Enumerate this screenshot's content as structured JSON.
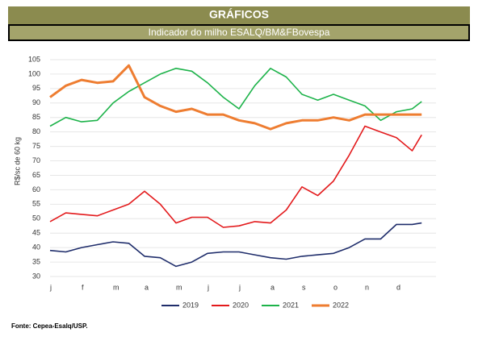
{
  "header": {
    "title": "GRÁFICOS",
    "subtitle": "Indicador do milho ESALQ/BM&FBovespa"
  },
  "source": "Fonte: Cepea-Esalq/USP.",
  "chart_data": {
    "type": "line",
    "y_label": "R$/sc de 60 kg",
    "x": [
      0,
      0.5,
      1,
      1.5,
      2,
      2.5,
      3,
      3.5,
      4,
      4.5,
      5,
      5.5,
      6,
      6.5,
      7,
      7.5,
      8,
      8.5,
      9,
      9.5,
      10,
      10.5,
      11,
      11.5,
      11.8
    ],
    "xlim": [
      0,
      12
    ],
    "xticks": [
      {
        "value": 0,
        "label": "j"
      },
      {
        "value": 1,
        "label": "f"
      },
      {
        "value": 2,
        "label": "m"
      },
      {
        "value": 3,
        "label": "a"
      },
      {
        "value": 4,
        "label": "m"
      },
      {
        "value": 5,
        "label": "j"
      },
      {
        "value": 6,
        "label": "j"
      },
      {
        "value": 7,
        "label": "a"
      },
      {
        "value": 8,
        "label": "s"
      },
      {
        "value": 9,
        "label": "o"
      },
      {
        "value": 10,
        "label": "n"
      },
      {
        "value": 11,
        "label": "d"
      }
    ],
    "ylim": [
      30,
      105
    ],
    "yticks": [
      30,
      35,
      40,
      45,
      50,
      55,
      60,
      65,
      70,
      75,
      80,
      85,
      90,
      95,
      100,
      105
    ],
    "grid": true,
    "legend": "bottom",
    "series": [
      {
        "name": "2019",
        "color": "#1f2d6b",
        "values": [
          39,
          38.5,
          40,
          41,
          42,
          41.5,
          37,
          36.5,
          33.5,
          35,
          38,
          38.5,
          38.5,
          37.5,
          36.5,
          36,
          37,
          37.5,
          38,
          40,
          43,
          43,
          48,
          48,
          48.5
        ]
      },
      {
        "name": "2020",
        "color": "#e31a1c",
        "values": [
          49,
          52,
          51.5,
          51,
          53,
          55,
          59.5,
          55,
          48.5,
          50.5,
          50.5,
          47,
          47.5,
          49,
          48.5,
          53,
          61,
          58,
          63,
          72,
          82,
          80,
          78,
          73.5,
          79
        ]
      },
      {
        "name": "2021",
        "color": "#1db34a",
        "values": [
          82,
          85,
          83.5,
          84,
          90,
          94,
          97,
          100,
          102,
          101,
          97,
          92,
          88,
          96,
          102,
          99,
          93,
          91,
          93,
          91,
          89,
          84,
          87,
          88,
          90.5
        ]
      },
      {
        "name": "2022",
        "color": "#ee7d31",
        "values": [
          92,
          96,
          98,
          97,
          97.5,
          103,
          92,
          89,
          87,
          88,
          86,
          86,
          84,
          83,
          81,
          83,
          84,
          84,
          85,
          84,
          86,
          86,
          86,
          86,
          86
        ]
      }
    ]
  }
}
